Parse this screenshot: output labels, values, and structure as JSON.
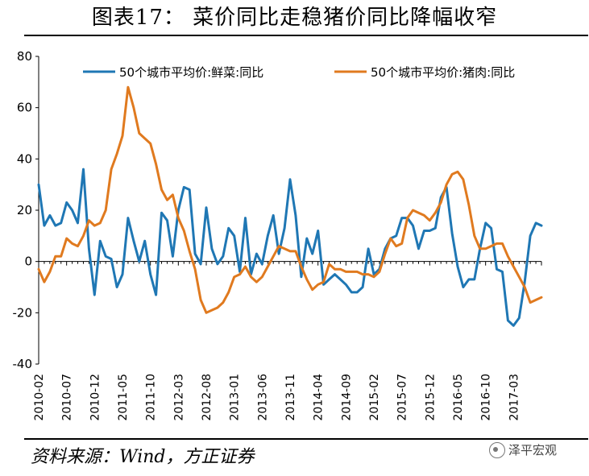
{
  "title": "图表17：  菜价同比走稳猪价同比降幅收窄",
  "source": "资料来源：Wind，方正证券",
  "watermark": "泽平宏观",
  "chart_data": {
    "type": "line",
    "ylim": [
      -40,
      80
    ],
    "yticks": [
      -40,
      -20,
      0,
      20,
      40,
      60,
      80
    ],
    "xlim": [
      0,
      90
    ],
    "xticks": [
      {
        "i": 0,
        "label": "2010-02"
      },
      {
        "i": 5,
        "label": "2010-07"
      },
      {
        "i": 10,
        "label": "2010-12"
      },
      {
        "i": 15,
        "label": "2011-05"
      },
      {
        "i": 20,
        "label": "2011-10"
      },
      {
        "i": 25,
        "label": "2012-03"
      },
      {
        "i": 30,
        "label": "2012-08"
      },
      {
        "i": 35,
        "label": "2013-01"
      },
      {
        "i": 40,
        "label": "2013-06"
      },
      {
        "i": 45,
        "label": "2013-11"
      },
      {
        "i": 50,
        "label": "2014-04"
      },
      {
        "i": 55,
        "label": "2014-09"
      },
      {
        "i": 60,
        "label": "2015-02"
      },
      {
        "i": 65,
        "label": "2015-07"
      },
      {
        "i": 70,
        "label": "2015-12"
      },
      {
        "i": 75,
        "label": "2016-05"
      },
      {
        "i": 80,
        "label": "2016-10"
      },
      {
        "i": 85,
        "label": "2017-03"
      }
    ],
    "series": [
      {
        "name": "50个城市平均价:鲜菜:同比",
        "color": "#1F77B4",
        "values": [
          30,
          14,
          18,
          14,
          15,
          23,
          20,
          15,
          36,
          5,
          -13,
          8,
          2,
          1,
          -10,
          -5,
          17,
          8,
          0,
          8,
          -5,
          -13,
          19,
          16,
          2,
          20,
          29,
          28,
          3,
          -1,
          21,
          5,
          -1,
          2,
          13,
          10,
          -4,
          17,
          -5,
          3,
          -1,
          10,
          18,
          3,
          13,
          32,
          18,
          -6,
          9,
          3,
          12,
          -9,
          -7,
          -5,
          -7,
          -9,
          -12,
          -12,
          -10,
          5,
          -5,
          -3,
          5,
          9,
          10,
          17,
          17,
          14,
          5,
          12,
          12,
          13,
          25,
          29,
          11,
          -2,
          -10,
          -7,
          -7,
          5,
          15,
          13,
          -3,
          -4,
          -23,
          -25,
          -22,
          -8,
          10,
          15,
          14
        ]
      },
      {
        "name": "50个城市平均价:猪肉:同比",
        "color": "#E07A1F",
        "values": [
          -3,
          -8,
          -4,
          2,
          2,
          9,
          7,
          6,
          10,
          16,
          14,
          15,
          20,
          36,
          42,
          49,
          68,
          60,
          50,
          48,
          46,
          38,
          28,
          24,
          26,
          17,
          12,
          4,
          -3,
          -15,
          -20,
          -19,
          -18,
          -16,
          -12,
          -6,
          -5,
          -2,
          -6,
          -8,
          -6,
          -2,
          2,
          6,
          5,
          4,
          4,
          -2,
          -7,
          -11,
          -9,
          -8,
          -1,
          -3,
          -3,
          -4,
          -4,
          -4,
          -5,
          -5,
          -6,
          -4,
          3,
          9,
          6,
          7,
          17,
          20,
          19,
          18,
          16,
          19,
          23,
          30,
          34,
          35,
          32,
          22,
          10,
          5,
          5,
          6,
          7,
          7,
          2,
          -2,
          -6,
          -10,
          -16,
          -15,
          -14
        ]
      }
    ]
  }
}
